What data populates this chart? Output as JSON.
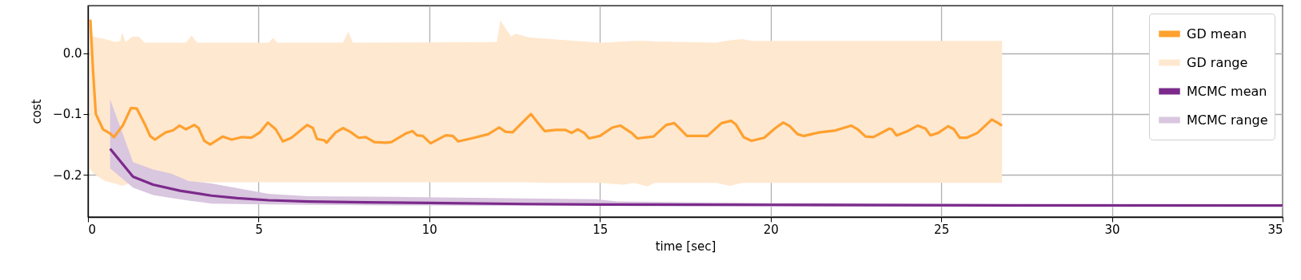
{
  "chart_data": {
    "type": "line",
    "xlabel": "time [sec]",
    "ylabel": "cost",
    "xlim": [
      0,
      35
    ],
    "xticks": [
      0,
      5,
      10,
      15,
      20,
      25,
      30,
      35
    ],
    "ylim": [
      -0.269,
      0.078
    ],
    "yticks": [
      {
        "value": -0.2,
        "label": "−0.2"
      },
      {
        "value": -0.1,
        "label": "−0.1"
      },
      {
        "value": 0,
        "label": "0.0"
      }
    ],
    "grid": true,
    "legend": "top right",
    "series": [
      {
        "name": "GD mean",
        "color": "#ffa02f",
        "x": [
          0.07,
          0.15,
          0.23,
          0.44,
          0.65,
          0.76,
          1.03,
          1.26,
          1.43,
          1.66,
          1.82,
          1.96,
          2.28,
          2.49,
          2.68,
          2.87,
          3.12,
          3.24,
          3.41,
          3.58,
          3.95,
          4.21,
          4.5,
          4.79,
          5.04,
          5.27,
          5.5,
          5.71,
          5.96,
          6.42,
          6.59,
          6.71,
          6.92,
          6.99,
          7.26,
          7.47,
          7.68,
          7.93,
          8.14,
          8.39,
          8.72,
          8.89,
          9.31,
          9.51,
          9.64,
          9.81,
          10.04,
          10.48,
          10.69,
          10.85,
          11.31,
          11.73,
          12.05,
          12.23,
          12.44,
          12.69,
          12.98,
          13.19,
          13.38,
          13.7,
          13.98,
          14.17,
          14.35,
          14.54,
          14.68,
          15.0,
          15.37,
          15.6,
          15.79,
          15.93,
          16.09,
          16.57,
          16.94,
          17.18,
          17.55,
          18.15,
          18.56,
          18.84,
          18.98,
          19.21,
          19.44,
          19.81,
          20.14,
          20.37,
          20.56,
          20.79,
          20.97,
          21.44,
          21.9,
          22.36,
          22.55,
          22.78,
          23.01,
          23.48,
          23.55,
          23.69,
          23.98,
          24.31,
          24.54,
          24.68,
          24.91,
          25.2,
          25.37,
          25.54,
          25.74,
          26.06,
          26.48,
          26.67,
          26.78
        ],
        "values": [
          0.055,
          -0.03,
          -0.1,
          -0.125,
          -0.132,
          -0.138,
          -0.118,
          -0.09,
          -0.091,
          -0.116,
          -0.136,
          -0.142,
          -0.13,
          -0.127,
          -0.119,
          -0.125,
          -0.118,
          -0.123,
          -0.144,
          -0.15,
          -0.137,
          -0.142,
          -0.138,
          -0.139,
          -0.13,
          -0.114,
          -0.125,
          -0.145,
          -0.139,
          -0.118,
          -0.123,
          -0.141,
          -0.143,
          -0.147,
          -0.13,
          -0.123,
          -0.129,
          -0.139,
          -0.138,
          -0.146,
          -0.147,
          -0.146,
          -0.132,
          -0.128,
          -0.135,
          -0.136,
          -0.148,
          -0.135,
          -0.136,
          -0.145,
          -0.139,
          -0.133,
          -0.122,
          -0.129,
          -0.13,
          -0.116,
          -0.1,
          -0.115,
          -0.128,
          -0.126,
          -0.126,
          -0.131,
          -0.125,
          -0.131,
          -0.14,
          -0.136,
          -0.122,
          -0.119,
          -0.126,
          -0.131,
          -0.14,
          -0.137,
          -0.118,
          -0.115,
          -0.136,
          -0.136,
          -0.115,
          -0.111,
          -0.117,
          -0.138,
          -0.144,
          -0.139,
          -0.123,
          -0.114,
          -0.12,
          -0.133,
          -0.136,
          -0.13,
          -0.127,
          -0.119,
          -0.125,
          -0.137,
          -0.138,
          -0.124,
          -0.125,
          -0.135,
          -0.129,
          -0.119,
          -0.124,
          -0.135,
          -0.131,
          -0.12,
          -0.125,
          -0.139,
          -0.139,
          -0.131,
          -0.109,
          -0.115,
          -0.119
        ]
      },
      {
        "name": "GD range",
        "type": "area",
        "color": "#fee8cf",
        "x": [
          0.05,
          0.1,
          0.15,
          0.5,
          0.8,
          0.95,
          1.0,
          1.1,
          1.3,
          1.49,
          1.66,
          2.87,
          3.04,
          3.2,
          5.3,
          5.42,
          5.55,
          7.47,
          7.63,
          7.76,
          11.98,
          12.08,
          12.23,
          12.4,
          12.53,
          12.9,
          13.33,
          15.0,
          15.7,
          16.0,
          16.4,
          16.6,
          18.4,
          18.8,
          19.17,
          19.44,
          26.78
        ],
        "values": [
          null,
          null,
          null,
          null,
          null,
          null,
          null,
          null,
          null,
          null,
          null,
          null,
          null,
          null,
          null,
          null,
          null,
          null,
          null,
          null,
          null,
          null,
          null,
          null,
          null,
          null,
          null,
          null,
          null,
          null,
          null,
          null,
          null,
          null,
          null,
          null,
          null
        ],
        "lower": [
          -0.19,
          -0.193,
          -0.197,
          -0.21,
          -0.214,
          -0.217,
          -0.218,
          -0.216,
          -0.212,
          -0.21,
          -0.212,
          -0.212,
          -0.212,
          -0.212,
          -0.212,
          -0.212,
          -0.212,
          -0.212,
          -0.212,
          -0.212,
          -0.212,
          -0.212,
          -0.212,
          -0.212,
          -0.212,
          -0.212,
          -0.213,
          -0.213,
          -0.216,
          -0.213,
          -0.219,
          -0.213,
          -0.213,
          -0.218,
          -0.213,
          -0.213,
          -0.213
        ],
        "upper": [
          0.059,
          0.04,
          0.027,
          0.023,
          0.018,
          0.02,
          0.034,
          0.018,
          0.027,
          0.027,
          0.017,
          0.017,
          0.029,
          0.017,
          0.017,
          0.025,
          0.017,
          0.017,
          0.035,
          0.017,
          0.018,
          0.054,
          0.041,
          0.027,
          0.032,
          0.026,
          0.024,
          0.017,
          0.019,
          0.02,
          0.02,
          0.019,
          0.017,
          0.021,
          0.023,
          0.02,
          0.02
        ]
      },
      {
        "name": "MCMC mean",
        "color": "#7b2a8b",
        "x": [
          0.65,
          1.32,
          1.91,
          2.7,
          3.62,
          4.37,
          5.29,
          6.46,
          8.14,
          10,
          12.88,
          15,
          20,
          26.9,
          35
        ],
        "values": [
          -0.157,
          -0.203,
          -0.216,
          -0.226,
          -0.234,
          -0.238,
          -0.2415,
          -0.2435,
          -0.245,
          -0.246,
          -0.2477,
          -0.2485,
          -0.249,
          -0.25,
          -0.25
        ]
      },
      {
        "name": "MCMC range",
        "type": "area",
        "color": "#d9c6df",
        "x": [
          0.65,
          1.32,
          1.91,
          2.45,
          2.95,
          3.62,
          5.29,
          6.46,
          8.97,
          14.9,
          15.5,
          20,
          35
        ],
        "values": [
          null,
          null,
          null,
          null,
          null,
          null,
          null,
          null,
          null,
          null,
          null,
          null,
          null
        ],
        "lower": [
          -0.189,
          -0.221,
          -0.233,
          -0.238,
          -0.242,
          -0.247,
          -0.2485,
          -0.249,
          -0.25,
          -0.251,
          -0.251,
          -0.252,
          -0.253
        ],
        "upper": [
          -0.076,
          -0.179,
          -0.191,
          -0.198,
          -0.21,
          -0.214,
          -0.231,
          -0.235,
          -0.236,
          -0.24,
          -0.2435,
          -0.246,
          -0.248
        ]
      }
    ]
  }
}
